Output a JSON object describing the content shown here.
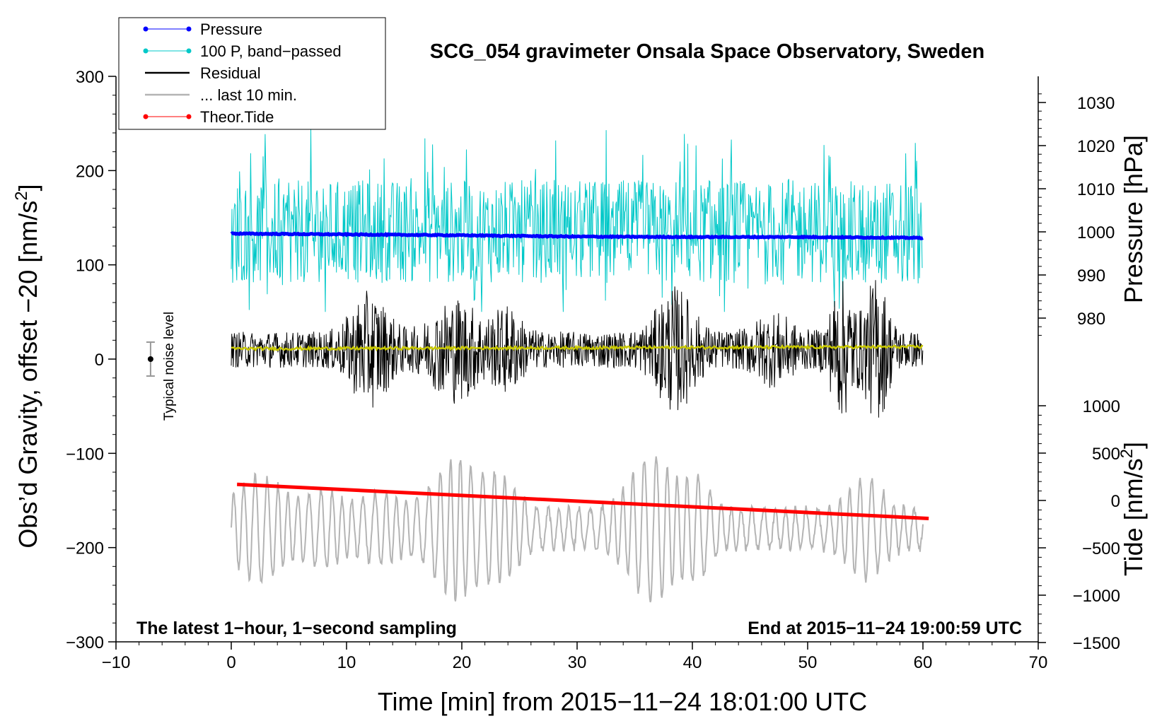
{
  "chart_data": {
    "type": "line",
    "title": "SCG_054 gravimeter Onsala Space Observatory, Sweden",
    "xlabel": "Time [min] from 2015−11−24 18:01:00 UTC",
    "ylabel_left_main": "Obs’d Gravity, offset −20 [nm/s",
    "ylabel_left_sup": "2",
    "ylabel_left_end": "]",
    "ylabel_right_pressure": "Pressure [hPa]",
    "ylabel_right_tide_main": "Tide [nm/s",
    "ylabel_right_tide_sup": "2",
    "ylabel_right_tide_end": "]",
    "xlim": [
      -10,
      70
    ],
    "ylim": [
      -300,
      300
    ],
    "pressure_lim": [
      976,
      1032
    ],
    "tide_lim": [
      -1500,
      1000
    ],
    "x_ticks": [
      -10,
      0,
      10,
      20,
      30,
      40,
      50,
      60,
      70
    ],
    "x_tick_labels": [
      "−10",
      "0",
      "10",
      "20",
      "30",
      "40",
      "50",
      "60",
      "70"
    ],
    "y_ticks": [
      -300,
      -200,
      -100,
      0,
      100,
      200,
      300
    ],
    "y_tick_labels": [
      "−300",
      "−200",
      "−100",
      "0",
      "100",
      "200",
      "300"
    ],
    "pressure_ticks": [
      980,
      990,
      1000,
      1010,
      1020,
      1030
    ],
    "pressure_tick_labels": [
      "980",
      "990",
      "1000",
      "1010",
      "1020",
      "1030"
    ],
    "tide_ticks": [
      -1500,
      -1000,
      -500,
      0,
      500,
      1000
    ],
    "tide_tick_labels": [
      "−1500",
      "−1000",
      "−500",
      "0",
      "500",
      "1000"
    ],
    "legend": {
      "position": "top-left",
      "entries": [
        {
          "label": "Pressure",
          "color": "#0000ff",
          "marker": true
        },
        {
          "label": "100 P, band−passed",
          "color": "#00c8c8",
          "marker": true
        },
        {
          "label": "Residual",
          "color": "#000000",
          "marker": false
        },
        {
          "label": "... last 10 min.",
          "color": "#b4b4b4",
          "marker": false
        },
        {
          "label": "Theor.Tide",
          "color": "#ff0000",
          "marker": true
        }
      ]
    },
    "series": [
      {
        "name": "Pressure",
        "axis": "pressure",
        "x": [
          0,
          10,
          20,
          30,
          40,
          50,
          60
        ],
        "values": [
          999.6,
          999.4,
          999.2,
          998.9,
          998.8,
          998.8,
          998.6
        ],
        "color": "#0000ff"
      },
      {
        "name": "100 P, band−passed",
        "axis": "left",
        "center": 135,
        "amplitude_range": [
          -85,
          115
        ],
        "x_range": [
          0,
          60
        ],
        "color": "#00c8c8"
      },
      {
        "name": "Residual",
        "axis": "left",
        "center": 10,
        "amplitude_range": [
          -105,
          125
        ],
        "x_range": [
          0,
          60
        ],
        "color": "#000000"
      },
      {
        "name": "Residual mean",
        "axis": "left",
        "x": [
          0,
          60
        ],
        "values": [
          11,
          13
        ],
        "color": "#c8c800"
      },
      {
        "name": "... last 10 min.",
        "axis": "left",
        "center": -180,
        "amplitude_range": [
          -120,
          95
        ],
        "x_range": [
          0,
          60
        ],
        "color": "#b4b4b4"
      },
      {
        "name": "Theor.Tide",
        "axis": "tide",
        "x": [
          0.5,
          60.5
        ],
        "values": [
          170,
          -190
        ],
        "color": "#ff0000"
      }
    ],
    "noise_level": {
      "label": "Typical noise level",
      "x": -7,
      "y": 0,
      "err": 18
    },
    "annotations": {
      "bottom_left": "The latest 1−hour, 1−second sampling",
      "bottom_right": "End at 2015−11−24 19:00:59 UTC"
    },
    "grid": false
  }
}
